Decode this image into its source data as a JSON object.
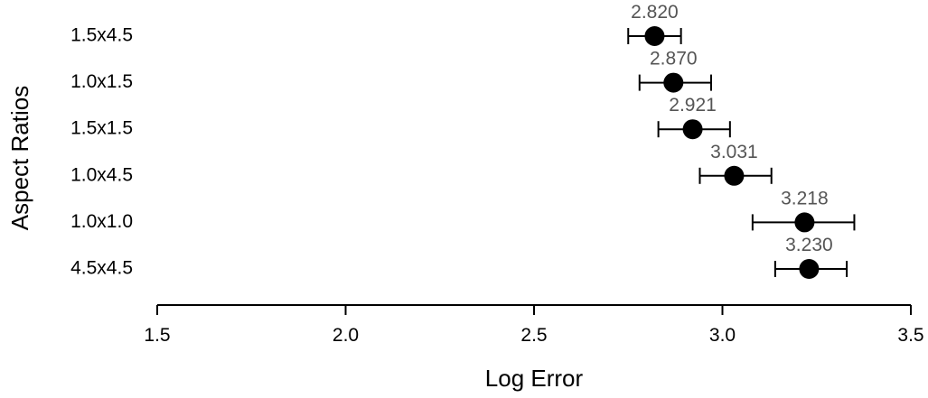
{
  "chart_data": {
    "type": "scatter",
    "title": "",
    "xlabel": "Log Error",
    "ylabel": "Aspect Ratios",
    "xlim": [
      1.5,
      3.5
    ],
    "xticks": [
      "1.5",
      "2.0",
      "2.5",
      "3.0",
      "3.5"
    ],
    "grid": false,
    "categories": [
      "1.5x4.5",
      "1.0x1.5",
      "1.5x1.5",
      "1.0x4.5",
      "1.0x1.0",
      "4.5x4.5"
    ],
    "values": [
      2.82,
      2.87,
      2.921,
      3.031,
      3.218,
      3.23
    ],
    "value_labels": [
      "2.820",
      "2.870",
      "2.921",
      "3.031",
      "3.218",
      "3.230"
    ],
    "error_low": [
      2.75,
      2.78,
      2.83,
      2.94,
      3.08,
      3.14
    ],
    "error_high": [
      2.89,
      2.97,
      3.02,
      3.13,
      3.35,
      3.33
    ],
    "colors": {
      "point": "#000000",
      "data_label": "#555555"
    }
  }
}
